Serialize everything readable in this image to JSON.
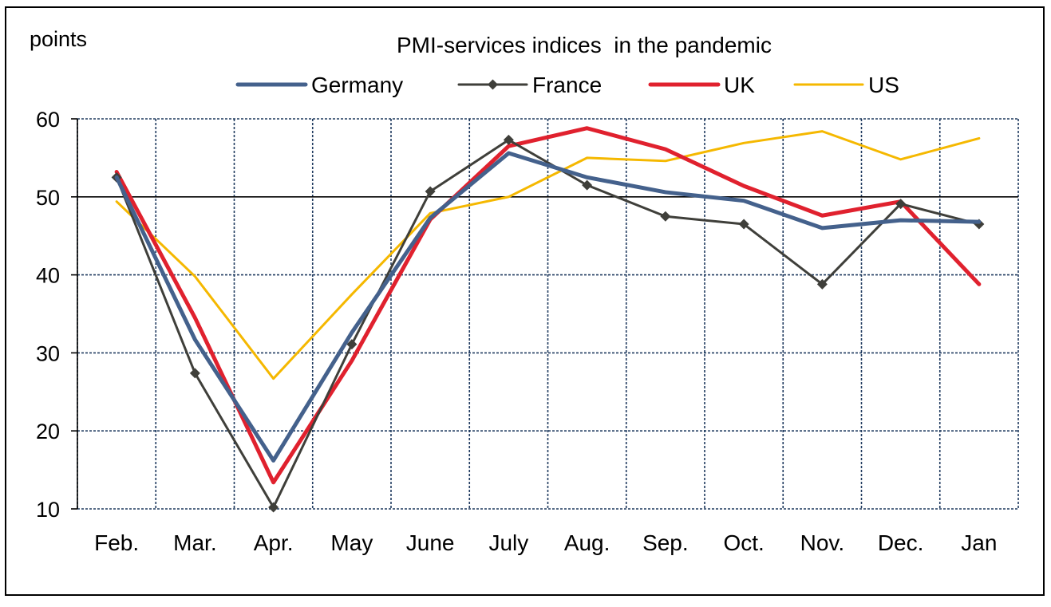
{
  "chart_data": {
    "type": "line",
    "title": "PMI-services indices  in the pandemic",
    "ylabel": "points",
    "xlabel": "",
    "categories": [
      "Feb.",
      "Mar.",
      "Apr.",
      "May",
      "June",
      "July",
      "Aug.",
      "Sep.",
      "Oct.",
      "Nov.",
      "Dec.",
      "Jan"
    ],
    "ylim": [
      10,
      60
    ],
    "yticks": [
      10,
      20,
      30,
      40,
      50,
      60
    ],
    "reference_line": 50,
    "grid": true,
    "legend_position": "top",
    "series": [
      {
        "name": "Germany",
        "color": "#44618C",
        "marker": "none",
        "values": [
          52.5,
          31.7,
          16.2,
          32.6,
          47.3,
          55.6,
          52.5,
          50.6,
          49.5,
          46.0,
          47.0,
          46.8
        ]
      },
      {
        "name": "France",
        "color": "#3F3F3A",
        "marker": "diamond",
        "values": [
          52.5,
          27.4,
          10.2,
          31.1,
          50.7,
          57.3,
          51.5,
          47.5,
          46.5,
          38.8,
          49.1,
          46.5
        ]
      },
      {
        "name": "UK",
        "color": "#E0212E",
        "marker": "none",
        "values": [
          53.2,
          34.5,
          13.4,
          29.0,
          47.1,
          56.5,
          58.8,
          56.1,
          51.4,
          47.6,
          49.4,
          38.8
        ]
      },
      {
        "name": "US",
        "color": "#F5B800",
        "marker": "none",
        "values": [
          49.4,
          39.8,
          26.7,
          37.5,
          47.9,
          50.0,
          55.0,
          54.6,
          56.9,
          58.4,
          54.8,
          57.5
        ]
      }
    ]
  }
}
